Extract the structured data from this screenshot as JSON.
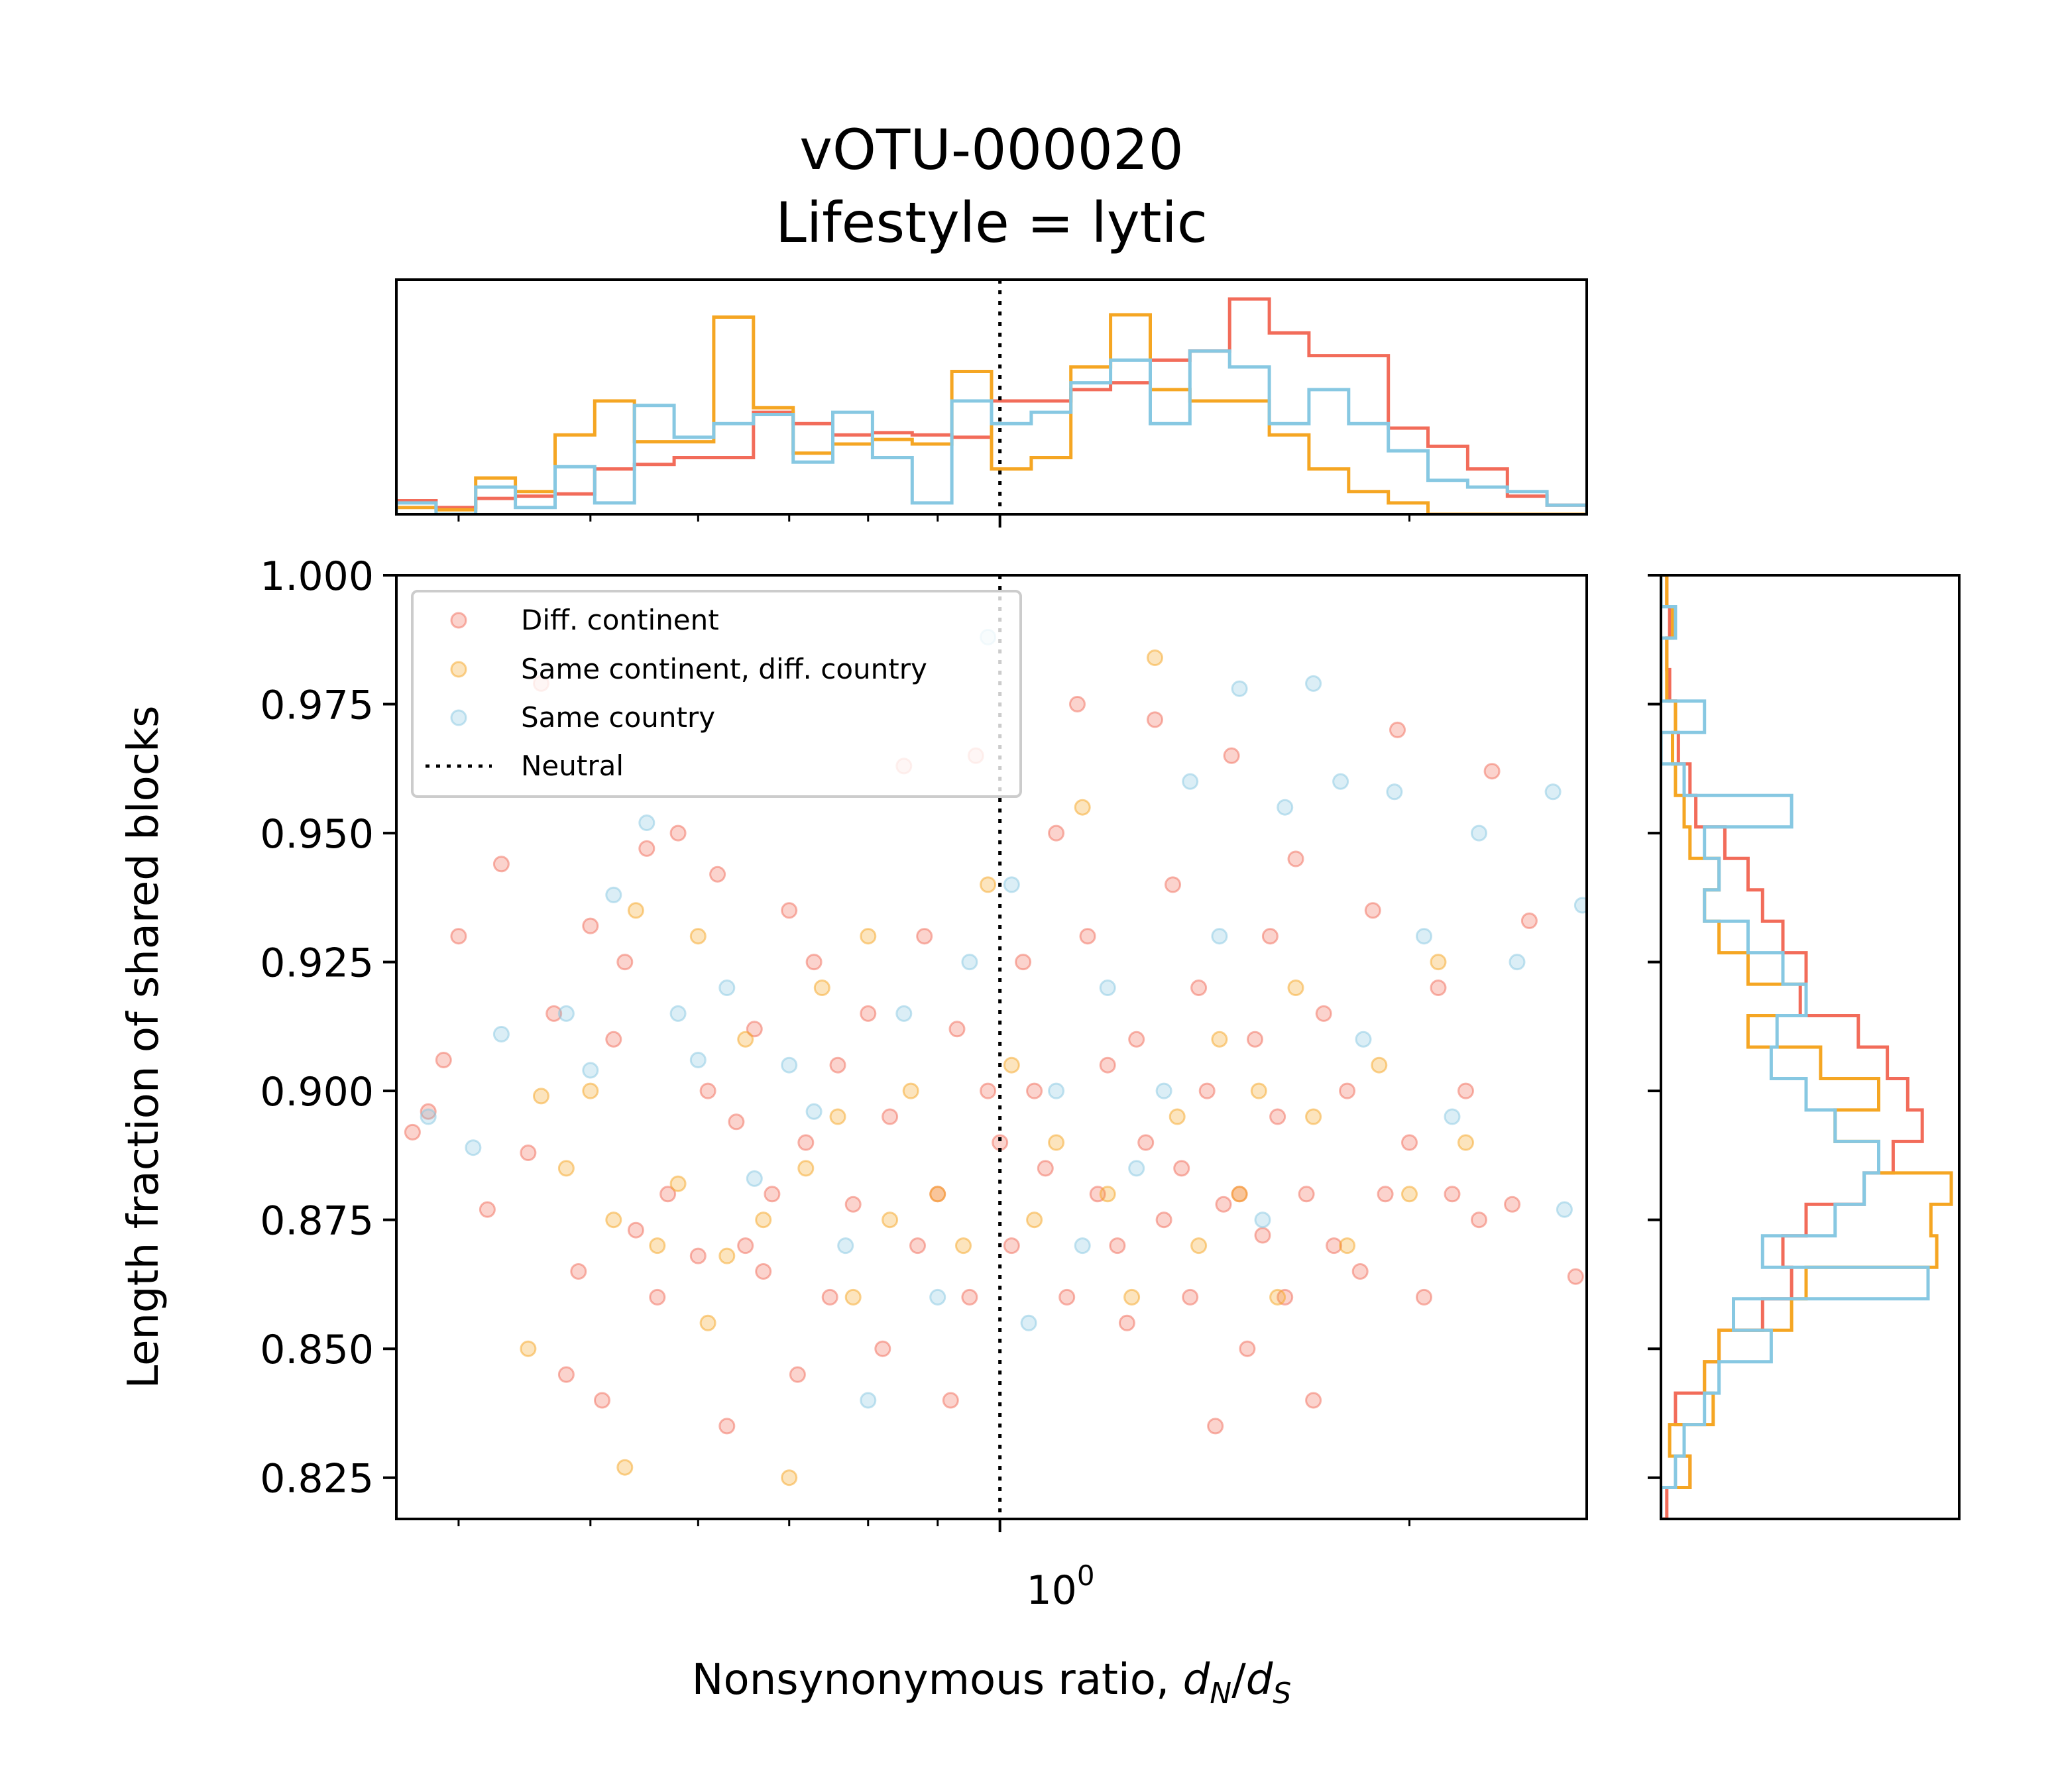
{
  "chart_data": {
    "type": "scatter",
    "title_lines": [
      "vOTU-000020",
      "Lifestyle = lytic"
    ],
    "xlabel": "Nonsynonymous ratio, ",
    "xlabel_math": {
      "d": "d",
      "N": "N",
      "slash": "/",
      "d2": "d",
      "S": "S"
    },
    "ylabel": "Length fraction of shared blocks",
    "x_scale": "log",
    "xlim": [
      0.36,
      2.7
    ],
    "ylim": [
      0.817,
      1.0
    ],
    "x_tick_labels": [
      {
        "base": "10",
        "exp": "0",
        "value": 1.0
      }
    ],
    "y_ticks": [
      {
        "label": "0.825",
        "value": 0.825
      },
      {
        "label": "0.850",
        "value": 0.85
      },
      {
        "label": "0.875",
        "value": 0.875
      },
      {
        "label": "0.900",
        "value": 0.9
      },
      {
        "label": "0.925",
        "value": 0.925
      },
      {
        "label": "0.950",
        "value": 0.95
      },
      {
        "label": "0.975",
        "value": 0.975
      },
      {
        "label": "1.000",
        "value": 1.0
      }
    ],
    "neutral_line_x": 1.0,
    "legend": {
      "position": "upper-left",
      "entries": [
        {
          "label": "Diff. continent",
          "color": "#f26c5a",
          "kind": "marker"
        },
        {
          "label": "Same continent, diff. country",
          "color": "#f5a623",
          "kind": "marker"
        },
        {
          "label": "Same country",
          "color": "#87c8e2",
          "kind": "marker"
        },
        {
          "label": "Neutral",
          "color": "#000000",
          "kind": "dotted-line"
        }
      ]
    },
    "series": [
      {
        "name": "Diff. continent",
        "color": "#f26c5a",
        "points": [
          [
            0.37,
            0.892
          ],
          [
            0.38,
            0.896
          ],
          [
            0.39,
            0.906
          ],
          [
            0.4,
            0.93
          ],
          [
            0.42,
            0.877
          ],
          [
            0.43,
            0.944
          ],
          [
            0.45,
            0.888
          ],
          [
            0.46,
            0.979
          ],
          [
            0.47,
            0.915
          ],
          [
            0.48,
            0.845
          ],
          [
            0.49,
            0.865
          ],
          [
            0.5,
            0.932
          ],
          [
            0.51,
            0.84
          ],
          [
            0.52,
            0.91
          ],
          [
            0.53,
            0.925
          ],
          [
            0.54,
            0.873
          ],
          [
            0.55,
            0.947
          ],
          [
            0.56,
            0.86
          ],
          [
            0.57,
            0.88
          ],
          [
            0.58,
            0.95
          ],
          [
            0.6,
            0.868
          ],
          [
            0.61,
            0.9
          ],
          [
            0.62,
            0.942
          ],
          [
            0.63,
            0.835
          ],
          [
            0.64,
            0.894
          ],
          [
            0.65,
            0.87
          ],
          [
            0.66,
            0.912
          ],
          [
            0.67,
            0.865
          ],
          [
            0.68,
            0.88
          ],
          [
            0.7,
            0.935
          ],
          [
            0.71,
            0.845
          ],
          [
            0.72,
            0.89
          ],
          [
            0.73,
            0.925
          ],
          [
            0.75,
            0.86
          ],
          [
            0.76,
            0.905
          ],
          [
            0.78,
            0.878
          ],
          [
            0.8,
            0.915
          ],
          [
            0.82,
            0.85
          ],
          [
            0.83,
            0.895
          ],
          [
            0.85,
            0.963
          ],
          [
            0.87,
            0.87
          ],
          [
            0.88,
            0.93
          ],
          [
            0.9,
            0.88
          ],
          [
            0.92,
            0.84
          ],
          [
            0.93,
            0.912
          ],
          [
            0.95,
            0.86
          ],
          [
            0.96,
            0.965
          ],
          [
            0.98,
            0.9
          ],
          [
            1.0,
            0.89
          ],
          [
            1.02,
            0.87
          ],
          [
            1.04,
            0.925
          ],
          [
            1.06,
            0.9
          ],
          [
            1.08,
            0.885
          ],
          [
            1.1,
            0.95
          ],
          [
            1.12,
            0.86
          ],
          [
            1.14,
            0.975
          ],
          [
            1.16,
            0.93
          ],
          [
            1.18,
            0.88
          ],
          [
            1.2,
            0.905
          ],
          [
            1.22,
            0.87
          ],
          [
            1.24,
            0.855
          ],
          [
            1.26,
            0.91
          ],
          [
            1.28,
            0.89
          ],
          [
            1.3,
            0.972
          ],
          [
            1.32,
            0.875
          ],
          [
            1.34,
            0.94
          ],
          [
            1.36,
            0.885
          ],
          [
            1.38,
            0.86
          ],
          [
            1.4,
            0.92
          ],
          [
            1.42,
            0.9
          ],
          [
            1.44,
            0.835
          ],
          [
            1.46,
            0.878
          ],
          [
            1.48,
            0.965
          ],
          [
            1.5,
            0.88
          ],
          [
            1.52,
            0.85
          ],
          [
            1.54,
            0.91
          ],
          [
            1.56,
            0.872
          ],
          [
            1.58,
            0.93
          ],
          [
            1.6,
            0.895
          ],
          [
            1.62,
            0.86
          ],
          [
            1.65,
            0.945
          ],
          [
            1.68,
            0.88
          ],
          [
            1.7,
            0.84
          ],
          [
            1.73,
            0.915
          ],
          [
            1.76,
            0.87
          ],
          [
            1.8,
            0.9
          ],
          [
            1.84,
            0.865
          ],
          [
            1.88,
            0.935
          ],
          [
            1.92,
            0.88
          ],
          [
            1.96,
            0.97
          ],
          [
            2.0,
            0.89
          ],
          [
            2.05,
            0.86
          ],
          [
            2.1,
            0.92
          ],
          [
            2.15,
            0.88
          ],
          [
            2.2,
            0.9
          ],
          [
            2.25,
            0.875
          ],
          [
            2.3,
            0.962
          ],
          [
            2.38,
            0.878
          ],
          [
            2.45,
            0.933
          ],
          [
            2.65,
            0.864
          ]
        ]
      },
      {
        "name": "Same continent, diff. country",
        "color": "#f5a623",
        "points": [
          [
            0.45,
            0.85
          ],
          [
            0.46,
            0.899
          ],
          [
            0.48,
            0.885
          ],
          [
            0.5,
            0.9
          ],
          [
            0.52,
            0.875
          ],
          [
            0.53,
            0.827
          ],
          [
            0.54,
            0.935
          ],
          [
            0.56,
            0.87
          ],
          [
            0.58,
            0.882
          ],
          [
            0.6,
            0.93
          ],
          [
            0.61,
            0.855
          ],
          [
            0.63,
            0.868
          ],
          [
            0.65,
            0.91
          ],
          [
            0.67,
            0.875
          ],
          [
            0.7,
            0.825
          ],
          [
            0.72,
            0.885
          ],
          [
            0.74,
            0.92
          ],
          [
            0.76,
            0.895
          ],
          [
            0.78,
            0.86
          ],
          [
            0.8,
            0.93
          ],
          [
            0.83,
            0.875
          ],
          [
            0.86,
            0.9
          ],
          [
            0.9,
            0.88
          ],
          [
            0.94,
            0.87
          ],
          [
            0.98,
            0.94
          ],
          [
            1.02,
            0.905
          ],
          [
            1.06,
            0.875
          ],
          [
            1.1,
            0.89
          ],
          [
            1.15,
            0.955
          ],
          [
            1.2,
            0.88
          ],
          [
            1.25,
            0.86
          ],
          [
            1.3,
            0.984
          ],
          [
            1.35,
            0.895
          ],
          [
            1.4,
            0.87
          ],
          [
            1.45,
            0.91
          ],
          [
            1.5,
            0.88
          ],
          [
            1.55,
            0.9
          ],
          [
            1.6,
            0.86
          ],
          [
            1.65,
            0.92
          ],
          [
            1.7,
            0.895
          ],
          [
            1.8,
            0.87
          ],
          [
            1.9,
            0.905
          ],
          [
            2.0,
            0.88
          ],
          [
            2.1,
            0.925
          ],
          [
            2.2,
            0.89
          ]
        ]
      },
      {
        "name": "Same country",
        "color": "#87c8e2",
        "points": [
          [
            0.38,
            0.895
          ],
          [
            0.41,
            0.889
          ],
          [
            0.43,
            0.911
          ],
          [
            0.48,
            0.915
          ],
          [
            0.5,
            0.904
          ],
          [
            0.52,
            0.938
          ],
          [
            0.55,
            0.952
          ],
          [
            0.58,
            0.915
          ],
          [
            0.6,
            0.906
          ],
          [
            0.63,
            0.92
          ],
          [
            0.66,
            0.883
          ],
          [
            0.7,
            0.905
          ],
          [
            0.73,
            0.896
          ],
          [
            0.77,
            0.87
          ],
          [
            0.8,
            0.84
          ],
          [
            0.85,
            0.915
          ],
          [
            0.9,
            0.86
          ],
          [
            0.95,
            0.925
          ],
          [
            0.98,
            0.988
          ],
          [
            1.02,
            0.94
          ],
          [
            1.05,
            0.855
          ],
          [
            1.1,
            0.9
          ],
          [
            1.15,
            0.87
          ],
          [
            1.2,
            0.92
          ],
          [
            1.26,
            0.885
          ],
          [
            1.32,
            0.9
          ],
          [
            1.38,
            0.96
          ],
          [
            1.45,
            0.93
          ],
          [
            1.5,
            0.978
          ],
          [
            1.56,
            0.875
          ],
          [
            1.62,
            0.955
          ],
          [
            1.7,
            0.979
          ],
          [
            1.78,
            0.96
          ],
          [
            1.85,
            0.91
          ],
          [
            1.95,
            0.958
          ],
          [
            2.05,
            0.93
          ],
          [
            2.15,
            0.895
          ],
          [
            2.25,
            0.95
          ],
          [
            2.4,
            0.925
          ],
          [
            2.55,
            0.958
          ],
          [
            2.6,
            0.877
          ],
          [
            2.68,
            0.936
          ]
        ]
      }
    ],
    "top_histogram": {
      "bins_x_range": [
        0.36,
        2.7
      ],
      "bin_count": 30,
      "series": [
        {
          "name": "Diff. continent",
          "color": "#f26c5a",
          "heights": [
            0.06,
            0.03,
            0.07,
            0.08,
            0.09,
            0.2,
            0.22,
            0.25,
            0.25,
            0.45,
            0.4,
            0.35,
            0.36,
            0.35,
            0.34,
            0.5,
            0.5,
            0.55,
            0.58,
            0.68,
            0.72,
            0.95,
            0.8,
            0.7,
            0.7,
            0.38,
            0.3,
            0.2,
            0.08,
            0.04
          ]
        },
        {
          "name": "Same continent, diff. country",
          "color": "#f5a623",
          "heights": [
            0.03,
            0.02,
            0.16,
            0.1,
            0.35,
            0.5,
            0.32,
            0.32,
            0.87,
            0.47,
            0.27,
            0.31,
            0.33,
            0.31,
            0.63,
            0.2,
            0.25,
            0.65,
            0.88,
            0.55,
            0.5,
            0.5,
            0.35,
            0.2,
            0.1,
            0.05,
            0.0,
            0.0,
            0.0,
            0.0
          ]
        },
        {
          "name": "Same country",
          "color": "#87c8e2",
          "heights": [
            0.05,
            0.0,
            0.12,
            0.03,
            0.21,
            0.05,
            0.48,
            0.34,
            0.4,
            0.44,
            0.23,
            0.45,
            0.25,
            0.05,
            0.5,
            0.4,
            0.45,
            0.58,
            0.68,
            0.4,
            0.72,
            0.65,
            0.4,
            0.55,
            0.4,
            0.28,
            0.15,
            0.12,
            0.1,
            0.04
          ]
        }
      ]
    },
    "right_histogram": {
      "bins_y_range": [
        0.817,
        1.0
      ],
      "bin_count": 30,
      "series": [
        {
          "name": "Diff. continent",
          "color": "#f26c5a",
          "widths": [
            0.02,
            0.1,
            0.08,
            0.05,
            0.15,
            0.2,
            0.35,
            0.45,
            0.42,
            0.5,
            0.7,
            0.8,
            0.9,
            0.85,
            0.78,
            0.68,
            0.48,
            0.5,
            0.42,
            0.35,
            0.3,
            0.22,
            0.12,
            0.1,
            0.06,
            0.05,
            0.03,
            0.02,
            0.03,
            0.02
          ]
        },
        {
          "name": "Same continent, diff. country",
          "color": "#f5a623",
          "widths": [
            0.0,
            0.1,
            0.03,
            0.18,
            0.15,
            0.2,
            0.45,
            0.5,
            0.95,
            0.93,
            1.0,
            0.75,
            0.6,
            0.75,
            0.55,
            0.3,
            0.5,
            0.3,
            0.2,
            0.15,
            0.2,
            0.1,
            0.08,
            0.05,
            0.04,
            0.05,
            0.02,
            0.02,
            0.04,
            0.02
          ]
        },
        {
          "name": "Same country",
          "color": "#87c8e2",
          "widths": [
            0.0,
            0.05,
            0.08,
            0.15,
            0.2,
            0.38,
            0.25,
            0.92,
            0.35,
            0.6,
            0.7,
            0.75,
            0.6,
            0.5,
            0.38,
            0.4,
            0.5,
            0.42,
            0.3,
            0.15,
            0.2,
            0.15,
            0.45,
            0.08,
            0.0,
            0.15,
            0.0,
            0.0,
            0.05,
            0.0
          ]
        }
      ]
    }
  }
}
